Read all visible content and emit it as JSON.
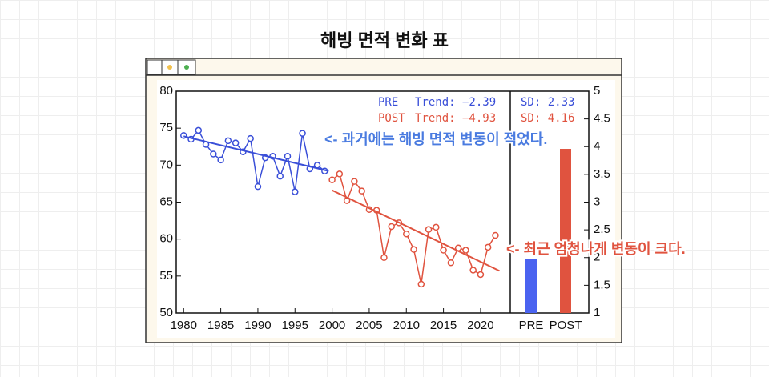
{
  "page_title": "해빙 면적 변화 표",
  "chart_data": [
    {
      "type": "line",
      "xlim": [
        1979,
        2024
      ],
      "xticks": [
        1980,
        1985,
        1990,
        1995,
        2000,
        2005,
        2010,
        2015,
        2020
      ],
      "ylim": [
        50,
        80
      ],
      "yticks": [
        50,
        55,
        60,
        65,
        70,
        75,
        80
      ],
      "series": [
        {
          "name": "PRE",
          "color": "#3a4fd8",
          "trend_text": "Trend: −2.39",
          "sd_text": "SD: 2.33",
          "x": [
            1980,
            1981,
            1982,
            1983,
            1984,
            1985,
            1986,
            1987,
            1988,
            1989,
            1990,
            1991,
            1992,
            1993,
            1994,
            1995,
            1996,
            1997,
            1998,
            1999
          ],
          "values": [
            74.0,
            73.5,
            74.7,
            72.8,
            71.5,
            70.7,
            73.3,
            73.0,
            71.8,
            73.6,
            67.1,
            71.0,
            71.2,
            68.5,
            71.2,
            66.4,
            74.3,
            69.5,
            70.0,
            69.2
          ],
          "trend": [
            73.9,
            69.2
          ]
        },
        {
          "name": "POST",
          "color": "#e0533f",
          "trend_text": "Trend: −4.93",
          "sd_text": "SD: 4.16",
          "x": [
            2000,
            2001,
            2002,
            2003,
            2004,
            2005,
            2006,
            2007,
            2008,
            2009,
            2010,
            2011,
            2012,
            2013,
            2014,
            2015,
            2016,
            2017,
            2018,
            2019,
            2020,
            2021,
            2022
          ],
          "values": [
            68.0,
            68.8,
            65.2,
            67.8,
            66.5,
            64.0,
            63.9,
            57.5,
            61.7,
            62.2,
            60.7,
            58.6,
            53.9,
            61.3,
            61.6,
            58.5,
            56.8,
            58.8,
            58.5,
            55.8,
            55.2,
            58.9,
            60.5
          ],
          "trend": [
            66.6,
            55.7
          ]
        }
      ],
      "annotations": [
        "<- 과거에는 해빙 면적 변동이 적었다.",
        "<- 최근 엄청나게 변동이 크다."
      ]
    },
    {
      "type": "bar",
      "categories": [
        "PRE",
        "POST"
      ],
      "values": [
        1.98,
        3.96
      ],
      "colors": [
        "#4a63f0",
        "#e0533f"
      ],
      "y2lim": [
        1,
        5
      ],
      "y2ticks": [
        1,
        1.5,
        2,
        2.5,
        3,
        3.5,
        4,
        4.5,
        5
      ]
    }
  ]
}
